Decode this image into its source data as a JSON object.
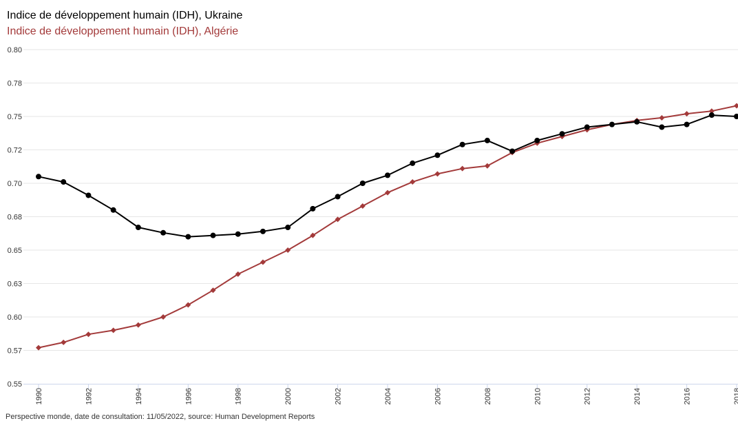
{
  "titles": {
    "series1": "Indice de développement humain (IDH), Ukraine",
    "series2": "Indice de développement humain (IDH), Algérie"
  },
  "footer": "Perspective monde, date de consultation: 11/05/2022, source: Human Development Reports",
  "colors": {
    "ukraine": "#000000",
    "algerie": "#a33a3a",
    "grid": "#e6e6e6",
    "axis": "#ccd6eb"
  },
  "chart_data": {
    "type": "line",
    "x": [
      1990,
      1991,
      1992,
      1993,
      1994,
      1995,
      1996,
      1997,
      1998,
      1999,
      2000,
      2001,
      2002,
      2003,
      2004,
      2005,
      2006,
      2007,
      2008,
      2009,
      2010,
      2011,
      2012,
      2013,
      2014,
      2015,
      2016,
      2017,
      2018
    ],
    "x_tick_labels": [
      "1990",
      "1992",
      "1994",
      "1996",
      "1998",
      "2000",
      "2002",
      "2004",
      "2006",
      "2008",
      "2010",
      "2012",
      "2014",
      "2016",
      "2018"
    ],
    "y_tick_labels": [
      "0.55",
      "0.57",
      "0.60",
      "0.63",
      "0.65",
      "0.68",
      "0.70",
      "0.72",
      "0.75",
      "0.78",
      "0.80"
    ],
    "ylim": [
      0.55,
      0.8
    ],
    "grid": true,
    "series": [
      {
        "name": "Indice de développement humain (IDH), Ukraine",
        "marker": "circle",
        "values": [
          0.705,
          0.701,
          0.691,
          0.68,
          0.667,
          0.663,
          0.66,
          0.661,
          0.662,
          0.664,
          0.667,
          0.681,
          0.69,
          0.7,
          0.706,
          0.715,
          0.721,
          0.729,
          0.732,
          0.724,
          0.732,
          0.737,
          0.742,
          0.744,
          0.746,
          0.742,
          0.744,
          0.751,
          0.75
        ]
      },
      {
        "name": "Indice de développement humain (IDH), Algérie",
        "marker": "diamond",
        "values": [
          0.577,
          0.581,
          0.587,
          0.59,
          0.594,
          0.6,
          0.609,
          0.62,
          0.632,
          0.641,
          0.65,
          0.661,
          0.673,
          0.683,
          0.693,
          0.701,
          0.707,
          0.711,
          0.713,
          0.723,
          0.73,
          0.735,
          0.74,
          0.744,
          0.747,
          0.749,
          0.752,
          0.754,
          0.758
        ]
      }
    ]
  }
}
